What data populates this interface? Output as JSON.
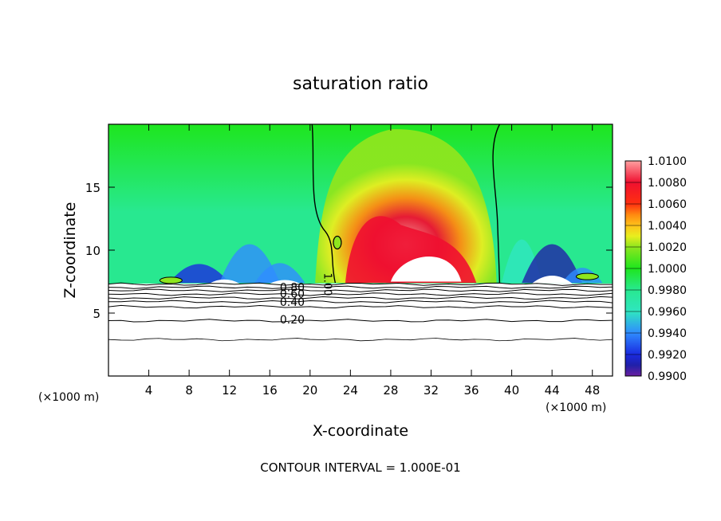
{
  "chart_data": {
    "type": "heatmap",
    "title": "saturation ratio",
    "xlabel": "X-coordinate",
    "ylabel": "Z-coordinate",
    "x_unit_label_left": "(×1000 m)",
    "x_unit_label_right": "(×1000 m)",
    "footer": "CONTOUR INTERVAL = 1.000E-01",
    "xlim": [
      0,
      50
    ],
    "ylim": [
      0,
      20
    ],
    "x_ticks": [
      4,
      8,
      12,
      16,
      20,
      24,
      28,
      32,
      36,
      40,
      44,
      48
    ],
    "y_ticks": [
      5,
      10,
      15
    ],
    "colorbar": {
      "min": 0.99,
      "max": 1.01,
      "labels": [
        "1.0100",
        "1.0080",
        "1.0060",
        "1.0040",
        "1.0020",
        "1.0000",
        "0.9980",
        "0.9960",
        "0.9940",
        "0.9920",
        "0.9900"
      ],
      "stops": [
        {
          "value": 0.99,
          "color": "#6a1fa0"
        },
        {
          "value": 0.991,
          "color": "#2020a8"
        },
        {
          "value": 0.992,
          "color": "#1a2ae0"
        },
        {
          "value": 0.994,
          "color": "#2f8cff"
        },
        {
          "value": 0.996,
          "color": "#2fe6c0"
        },
        {
          "value": 0.998,
          "color": "#28e890"
        },
        {
          "value": 1.0,
          "color": "#1ee61e"
        },
        {
          "value": 1.002,
          "color": "#8ee61e"
        },
        {
          "value": 1.003,
          "color": "#e8ee1e"
        },
        {
          "value": 1.004,
          "color": "#ffc21a"
        },
        {
          "value": 1.005,
          "color": "#ff8a10"
        },
        {
          "value": 1.006,
          "color": "#ff3010"
        },
        {
          "value": 1.008,
          "color": "#f01030"
        },
        {
          "value": 1.01,
          "color": "#ffa0a0"
        }
      ]
    },
    "lower_contour_labels": [
      "0.80",
      "0.60",
      "0.40",
      "0.20"
    ],
    "upper_contour_label": "1.00",
    "colors": {
      "background": "#ffffff",
      "saturated_region_base": "#1ee61e",
      "subsaturated_surface": "#ffffff"
    }
  }
}
